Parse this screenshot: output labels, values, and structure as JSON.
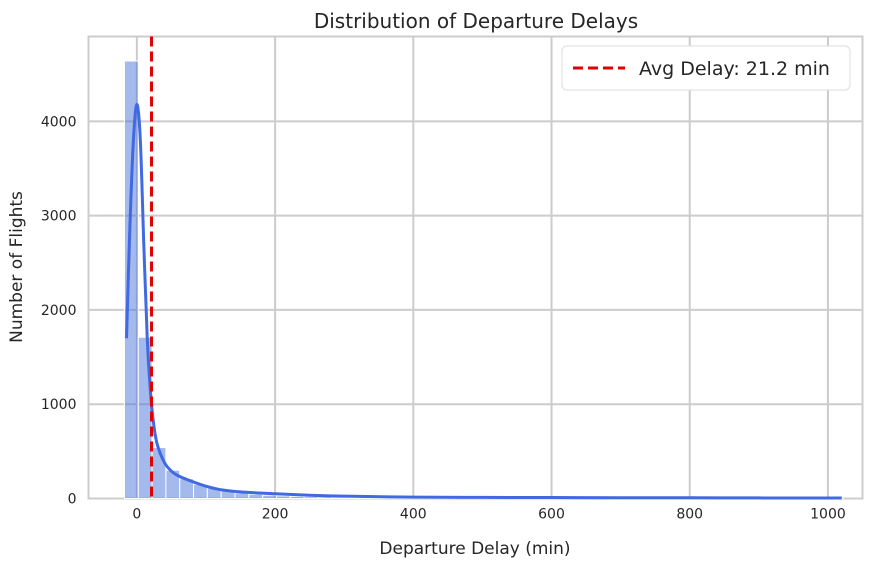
{
  "chart_data": {
    "type": "bar",
    "title": "Distribution of Departure Delays",
    "xlabel": "Departure Delay (min)",
    "ylabel": "Number of Flights",
    "xlim": [
      -70,
      1050
    ],
    "ylim": [
      0,
      4900
    ],
    "x_ticks": [
      0,
      200,
      400,
      600,
      800,
      1000
    ],
    "y_ticks": [
      0,
      1000,
      2000,
      3000,
      4000
    ],
    "grid": true,
    "legend": {
      "position": "top-right"
    },
    "colors": {
      "bars": "#4a74d9",
      "kde": "#4169e1",
      "mean_line": "#e00000",
      "grid": "#cccccc"
    },
    "histogram": {
      "bin_edges": [
        -18,
        2,
        22,
        42,
        62,
        82,
        102,
        122,
        142,
        162,
        182,
        202,
        222,
        242,
        262,
        282,
        302,
        322,
        342,
        362,
        382,
        402,
        422,
        442,
        462,
        482,
        502,
        522,
        542,
        562,
        582,
        602,
        622,
        642,
        662,
        682,
        702,
        722,
        742,
        762,
        782,
        802,
        822,
        842,
        862,
        882,
        902,
        922,
        942,
        962,
        982,
        1002,
        1022
      ],
      "counts": [
        4640,
        1710,
        540,
        300,
        210,
        150,
        110,
        80,
        60,
        45,
        35,
        28,
        22,
        18,
        15,
        12,
        10,
        8,
        7,
        6,
        5,
        5,
        4,
        4,
        3,
        3,
        3,
        2,
        2,
        2,
        2,
        2,
        2,
        1,
        1,
        1,
        1,
        1,
        1,
        1,
        1,
        1,
        1,
        1,
        1,
        1,
        1,
        1,
        1,
        1,
        1,
        1
      ]
    },
    "kde": {
      "x": [
        -15,
        -10,
        -5,
        0,
        5,
        10,
        15,
        20,
        25,
        30,
        40,
        50,
        60,
        80,
        100,
        120,
        150,
        200,
        250,
        300,
        400,
        500,
        600,
        700,
        800,
        900,
        1000,
        1020
      ],
      "y": [
        1700,
        2900,
        3800,
        4180,
        3800,
        2700,
        1700,
        1100,
        750,
        560,
        380,
        290,
        240,
        180,
        130,
        95,
        70,
        50,
        35,
        25,
        15,
        12,
        10,
        8,
        8,
        6,
        5,
        5
      ]
    },
    "mean_line": {
      "x": 21.2,
      "label": "Avg Delay: 21.2 min"
    }
  }
}
